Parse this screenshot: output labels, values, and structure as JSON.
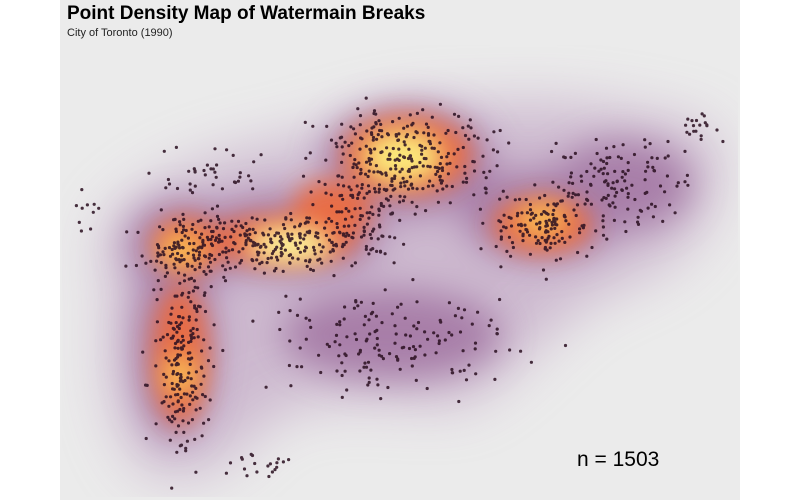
{
  "map": {
    "title": "Point Density Map of Watermain Breaks",
    "subtitle": "City of Toronto (1990)",
    "count_label": "n = 1503",
    "colors": {
      "panel_background": "#ebebeb",
      "density_low": "#9b6a9b",
      "density_mid": "#ef6a3a",
      "density_high": "#fdf59b",
      "points": "#2a0f20"
    }
  }
}
